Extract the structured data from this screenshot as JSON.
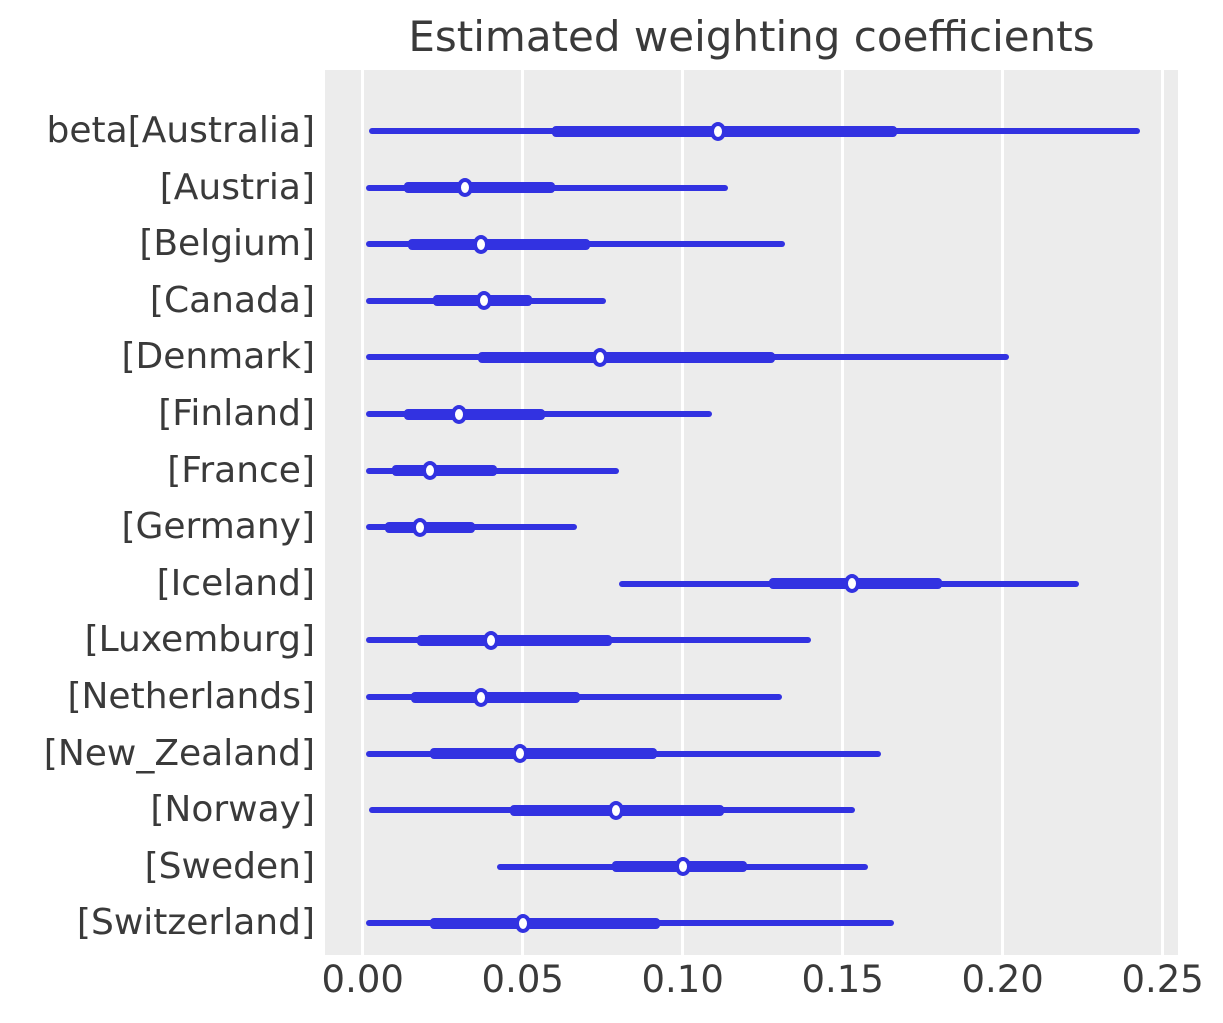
{
  "figure": {
    "colors": {
      "accent": "#3232e1",
      "marker_fill": "#ffffff",
      "plot_bg": "#ececec",
      "grid": "#ffffff",
      "text": "#3a3a3a",
      "fig_bg": "#ffffff"
    }
  },
  "chart_data": {
    "type": "scatter",
    "subtype": "forest-plot: point estimate with thick (inner) and thin (outer) credible intervals per category",
    "title": "Estimated weighting coefficients",
    "xlabel": "",
    "ylabel": "",
    "xlim": [
      -0.0118,
      0.2548
    ],
    "xticks": [
      0,
      0.05,
      0.1,
      0.15,
      0.2,
      0.25
    ],
    "xtick_labels": [
      "0.00",
      "0.05",
      "0.10",
      "0.15",
      "0.20",
      "0.25"
    ],
    "grid": "vertical white gridlines on light-gray panel, no axis spines",
    "legend": "none",
    "categories": [
      "beta[Australia]",
      "[Austria]",
      "[Belgium]",
      "[Canada]",
      "[Denmark]",
      "[Finland]",
      "[France]",
      "[Germany]",
      "[Iceland]",
      "[Luxemburg]",
      "[Netherlands]",
      "[New_Zealand]",
      "[Norway]",
      "[Sweden]",
      "[Switzerland]"
    ],
    "series": [
      {
        "name": "point_estimate",
        "values": [
          0.111,
          0.032,
          0.037,
          0.038,
          0.074,
          0.03,
          0.021,
          0.018,
          0.153,
          0.04,
          0.037,
          0.049,
          0.079,
          0.1,
          0.05
        ]
      },
      {
        "name": "inner_interval_low",
        "values": [
          0.059,
          0.013,
          0.014,
          0.022,
          0.036,
          0.013,
          0.009,
          0.007,
          0.127,
          0.017,
          0.015,
          0.021,
          0.046,
          0.078,
          0.021
        ]
      },
      {
        "name": "inner_interval_high",
        "values": [
          0.167,
          0.06,
          0.071,
          0.053,
          0.129,
          0.057,
          0.042,
          0.035,
          0.181,
          0.078,
          0.068,
          0.092,
          0.113,
          0.12,
          0.093
        ]
      },
      {
        "name": "outer_interval_low",
        "values": [
          0.002,
          0.001,
          0.001,
          0.001,
          0.001,
          0.001,
          0.001,
          0.001,
          0.08,
          0.001,
          0.001,
          0.001,
          0.002,
          0.042,
          0.001
        ]
      },
      {
        "name": "outer_interval_high",
        "values": [
          0.243,
          0.114,
          0.132,
          0.076,
          0.202,
          0.109,
          0.08,
          0.067,
          0.224,
          0.14,
          0.131,
          0.162,
          0.154,
          0.158,
          0.166
        ]
      }
    ]
  }
}
